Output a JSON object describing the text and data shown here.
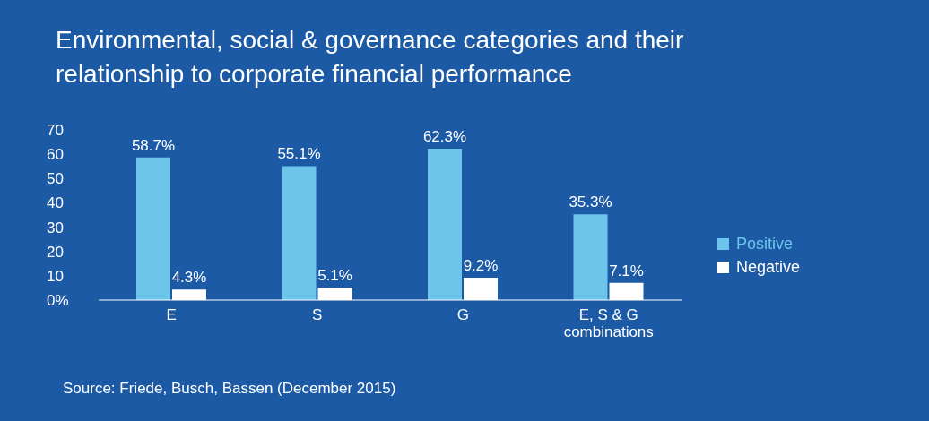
{
  "chart_data": {
    "type": "bar",
    "title": "Environmental, social & governance categories and their relationship to corporate financial performance",
    "categories": [
      "E",
      "S",
      "G",
      "E, S & G combinations"
    ],
    "series": [
      {
        "name": "Positive",
        "color": "#6dc5ec",
        "values": [
          58.7,
          55.1,
          62.3,
          35.3
        ],
        "value_labels": [
          "58.7%",
          "55.1%",
          "62.3%",
          "35.3%"
        ]
      },
      {
        "name": "Negative",
        "color": "#ffffff",
        "values": [
          4.3,
          5.1,
          9.2,
          7.1
        ],
        "value_labels": [
          "4.3%",
          "5.1%",
          "9.2%",
          "7.1%"
        ]
      }
    ],
    "ylim": [
      0,
      70
    ],
    "yticks": [
      {
        "value": 0,
        "label": "0%"
      },
      10,
      20,
      30,
      40,
      50,
      60,
      70
    ],
    "grid": false,
    "legend": "right",
    "annotations": [
      "Source: Friede, Busch, Bassen (December 2015)"
    ]
  }
}
